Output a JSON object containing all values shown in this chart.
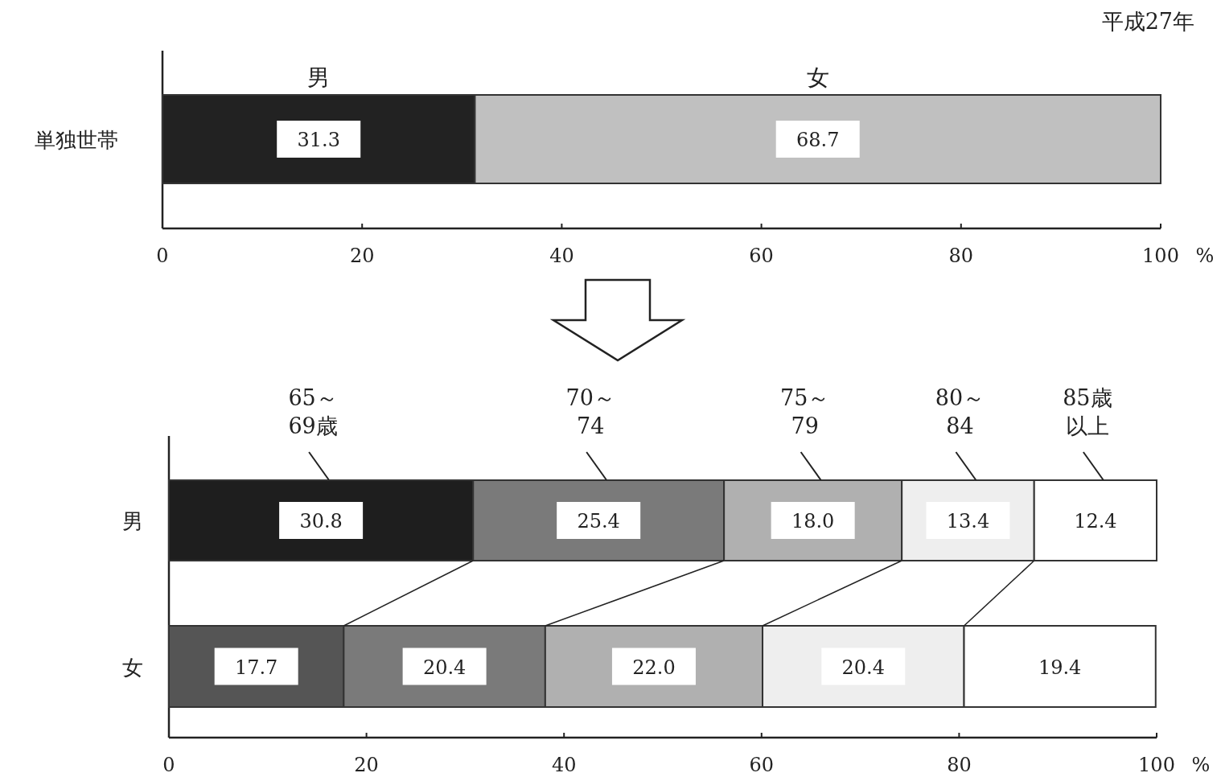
{
  "chart_data": [
    {
      "type": "bar",
      "orientation": "horizontal",
      "stacked": true,
      "categories": [
        "単独世帯"
      ],
      "xlim": [
        0,
        100
      ],
      "xticks": [
        0,
        20,
        40,
        60,
        80,
        100
      ],
      "xlabel": "%",
      "data_labels": true,
      "annotations": [
        "平成27年"
      ],
      "series": [
        {
          "name": "男",
          "color": "#222222",
          "values": [
            31.3
          ]
        },
        {
          "name": "女",
          "color": "#c0c0c0",
          "values": [
            68.7
          ]
        }
      ]
    },
    {
      "type": "bar",
      "orientation": "horizontal",
      "stacked": true,
      "categories": [
        "男",
        "女"
      ],
      "xlim": [
        0,
        100
      ],
      "xticks": [
        0,
        20,
        40,
        60,
        80,
        100
      ],
      "xlabel": "%",
      "series": [
        {
          "name": "65～69歳",
          "colors": [
            "#1e1e1e",
            "#555555"
          ],
          "values": [
            30.8,
            17.7
          ],
          "value_labels": [
            "30.8",
            "17.7"
          ]
        },
        {
          "name": "70～74",
          "colors": [
            "#7a7a7a",
            "#7a7a7a"
          ],
          "values": [
            25.4,
            20.4
          ],
          "value_labels": [
            "25.4",
            "20.4"
          ]
        },
        {
          "name": "75～79",
          "colors": [
            "#b0b0b0",
            "#b0b0b0"
          ],
          "values": [
            18.0,
            22.0
          ],
          "value_labels": [
            "18.0",
            "22.0"
          ]
        },
        {
          "name": "80～84",
          "colors": [
            "#eeeeee",
            "#eeeeee"
          ],
          "values": [
            13.4,
            20.4
          ],
          "value_labels": [
            "13.4",
            "20.4"
          ]
        },
        {
          "name": "85歳以上",
          "colors": [
            "#ffffff",
            "#ffffff"
          ],
          "values": [
            12.4,
            19.4
          ],
          "value_labels": [
            "12.4",
            "19.4"
          ]
        }
      ]
    }
  ]
}
